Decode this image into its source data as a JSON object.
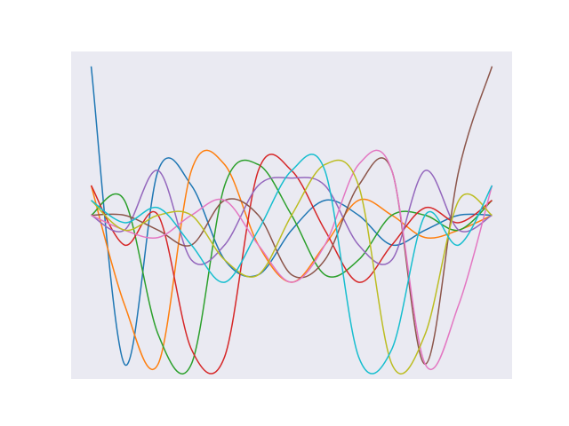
{
  "chart_data": {
    "type": "line",
    "x": [
      0,
      0.083,
      0.167,
      0.25,
      0.333,
      0.417,
      0.5,
      0.583,
      0.667,
      0.75,
      0.833,
      0.917,
      1
    ],
    "xlim": [
      -0.05,
      1.05
    ],
    "ylim": [
      -1.1,
      1.1
    ],
    "background": "#eaeaf2",
    "series": [
      {
        "color": "#1f77b4",
        "values": [
          1.0,
          -1.0,
          0.3,
          0.2,
          -0.3,
          -0.4,
          -0.1,
          0.1,
          0.0,
          -0.2,
          -0.1,
          0.0,
          0.0
        ]
      },
      {
        "color": "#ff7f0e",
        "values": [
          0.2,
          -0.6,
          -1.0,
          0.3,
          0.34,
          -0.2,
          -0.45,
          -0.2,
          0.1,
          0.0,
          -0.15,
          -0.1,
          0.0
        ]
      },
      {
        "color": "#2ca02c",
        "values": [
          0.0,
          0.1,
          -0.8,
          -1.0,
          0.2,
          0.34,
          0.0,
          -0.4,
          -0.3,
          0.0,
          0.0,
          -0.1,
          0.1
        ]
      },
      {
        "color": "#d62728",
        "values": [
          0.2,
          -0.2,
          0.0,
          -0.9,
          -0.95,
          0.3,
          0.3,
          -0.1,
          -0.45,
          -0.2,
          0.05,
          -0.05,
          0.1
        ]
      },
      {
        "color": "#9467bd",
        "values": [
          0.0,
          -0.1,
          0.3,
          -0.3,
          -0.2,
          0.2,
          0.25,
          0.2,
          -0.2,
          -0.3,
          0.3,
          -0.1,
          0.0
        ]
      },
      {
        "color": "#8c564b",
        "values": [
          0.0,
          0.0,
          -0.1,
          -0.2,
          0.1,
          0.0,
          -0.4,
          -0.3,
          0.2,
          0.3,
          -1.0,
          0.3,
          1.0
        ]
      },
      {
        "color": "#e377c2",
        "values": [
          0.0,
          -0.1,
          -0.15,
          0.0,
          0.1,
          -0.2,
          -0.45,
          -0.2,
          0.34,
          0.3,
          -1.0,
          -0.6,
          0.2
        ]
      },
      {
        "color": "#bcbd22",
        "values": [
          0.1,
          -0.1,
          0.0,
          0.0,
          -0.3,
          -0.4,
          0.0,
          0.34,
          0.2,
          -1.0,
          -0.8,
          0.1,
          0.0
        ]
      },
      {
        "color": "#17becf",
        "values": [
          0.1,
          -0.05,
          0.05,
          -0.2,
          -0.45,
          -0.1,
          0.3,
          0.3,
          -0.95,
          -0.9,
          0.0,
          -0.2,
          0.2
        ]
      }
    ]
  }
}
